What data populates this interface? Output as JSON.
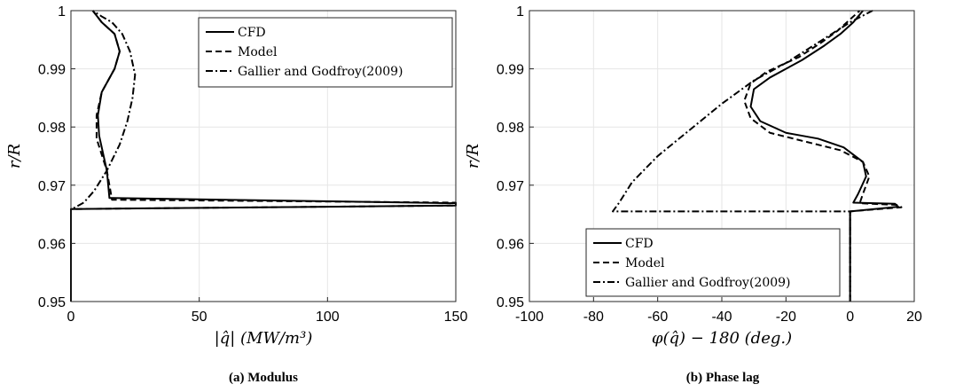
{
  "chart_data": [
    {
      "type": "line",
      "caption": "(a) Modulus",
      "xlabel": "|q̂| (MW/m³)",
      "ylabel": "r/R",
      "xlim": [
        0,
        150
      ],
      "ylim": [
        0.95,
        1.0
      ],
      "xticks": [
        0,
        50,
        100,
        150
      ],
      "yticks": [
        0.95,
        0.96,
        0.97,
        0.98,
        0.99,
        1
      ],
      "xtick_labels": [
        "0",
        "50",
        "100",
        "150"
      ],
      "ytick_labels": [
        "0.95",
        "0.96",
        "0.97",
        "0.98",
        "0.99",
        "1"
      ],
      "grid": true,
      "legend": {
        "position": "top-right",
        "entries": [
          "CFD",
          "Model",
          "Gallier and Godfroy(2009)"
        ]
      },
      "series": [
        {
          "name": "CFD",
          "dash": "solid",
          "x": [
            0,
            0,
            0,
            150,
            150,
            15,
            14,
            11,
            10.5,
            12,
            17,
            19,
            17,
            12,
            8.5
          ],
          "y": [
            0.95,
            0.958,
            0.9659,
            0.9665,
            0.9669,
            0.9678,
            0.9725,
            0.9785,
            0.982,
            0.986,
            0.99,
            0.993,
            0.996,
            0.998,
            1.0
          ]
        },
        {
          "name": "Model",
          "dash": "dashed",
          "x": [
            0,
            0,
            0,
            150,
            150,
            16,
            14,
            10,
            10,
            12,
            17,
            19,
            17,
            12,
            8.5
          ],
          "y": [
            0.95,
            0.958,
            0.9659,
            0.9665,
            0.967,
            0.9675,
            0.9725,
            0.978,
            0.982,
            0.986,
            0.99,
            0.993,
            0.996,
            0.998,
            1.0
          ]
        },
        {
          "name": "Gallier and Godfroy(2009)",
          "dash": "dashdot",
          "x": [
            0,
            0,
            5,
            9,
            14,
            19,
            22,
            24,
            25,
            23,
            20,
            16,
            12,
            8.5
          ],
          "y": [
            0.95,
            0.9658,
            0.967,
            0.969,
            0.9725,
            0.977,
            0.981,
            0.985,
            0.989,
            0.993,
            0.996,
            0.998,
            0.999,
            1.0
          ]
        }
      ]
    },
    {
      "type": "line",
      "caption": "(b) Phase lag",
      "xlabel": "φ(q̂) − 180 (deg.)",
      "ylabel": "r/R",
      "xlim": [
        -100,
        20
      ],
      "ylim": [
        0.95,
        1.0
      ],
      "xticks": [
        -100,
        -80,
        -60,
        -40,
        -20,
        0,
        20
      ],
      "yticks": [
        0.95,
        0.96,
        0.97,
        0.98,
        0.99,
        1
      ],
      "xtick_labels": [
        "-100",
        "-80",
        "-60",
        "-40",
        "-20",
        "0",
        "20"
      ],
      "ytick_labels": [
        "0.95",
        "0.96",
        "0.97",
        "0.98",
        "0.99",
        "1"
      ],
      "grid": true,
      "legend": {
        "position": "bottom-left",
        "entries": [
          "CFD",
          "Model",
          "Gallier and Godfroy(2009)"
        ]
      },
      "series": [
        {
          "name": "CFD",
          "dash": "solid",
          "x": [
            0,
            0,
            0,
            15,
            14,
            1,
            2.5,
            5,
            4,
            -2,
            -10,
            -20,
            -28,
            -31,
            -30,
            -25,
            -15,
            -8,
            -3,
            1,
            4
          ],
          "y": [
            0.95,
            0.96,
            0.9655,
            0.9663,
            0.9668,
            0.967,
            0.9685,
            0.9715,
            0.974,
            0.9765,
            0.978,
            0.979,
            0.981,
            0.9835,
            0.9865,
            0.9885,
            0.9915,
            0.994,
            0.996,
            0.998,
            1.0
          ]
        },
        {
          "name": "Model",
          "dash": "dashed",
          "x": [
            0,
            0,
            0,
            16,
            15,
            3,
            4,
            6,
            4,
            -3,
            -14,
            -25,
            -31,
            -33,
            -31,
            -26,
            -16,
            -9,
            -4,
            0,
            3
          ],
          "y": [
            0.95,
            0.96,
            0.9655,
            0.9662,
            0.9666,
            0.9669,
            0.9685,
            0.9715,
            0.974,
            0.976,
            0.9775,
            0.979,
            0.9815,
            0.9845,
            0.9875,
            0.9895,
            0.992,
            0.9945,
            0.9965,
            0.9985,
            1.0
          ]
        },
        {
          "name": "Gallier and Godfroy(2009)",
          "dash": "dashdot",
          "x": [
            0,
            0,
            0,
            -74,
            -72,
            -68,
            -60,
            -50,
            -40,
            -30,
            -20,
            -10,
            0,
            7
          ],
          "y": [
            0.95,
            0.96,
            0.9655,
            0.9655,
            0.967,
            0.9705,
            0.975,
            0.9795,
            0.984,
            0.988,
            0.991,
            0.9945,
            0.998,
            1.0
          ]
        }
      ]
    }
  ]
}
